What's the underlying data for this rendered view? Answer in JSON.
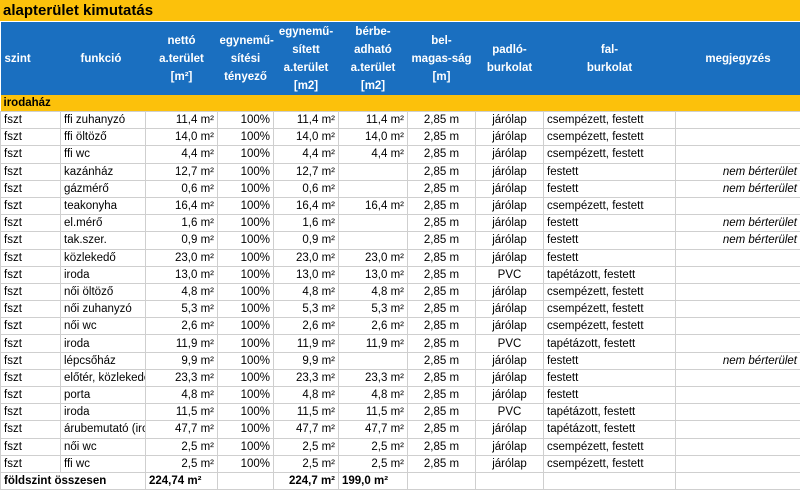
{
  "title": "alapterület kimutatás",
  "headers": [
    "szint",
    "funkció",
    "nettó a.terület [m²]",
    "egyneműsítési tényező",
    "egyneműsített a.terület [m2]",
    "bérbeadható a.terület [m2]",
    "belmagas-ság [m]",
    "padlóburkolat",
    "falburkolat",
    "megjegyzés"
  ],
  "header_lines": [
    [
      "szint"
    ],
    [
      "funkció"
    ],
    [
      "nettó",
      "a.terület",
      "[m²]"
    ],
    [
      "egynemű-",
      "sítési",
      "tényező"
    ],
    [
      "egynemű-",
      "sített",
      "a.terület",
      "[m2]"
    ],
    [
      "bérbe-",
      "adható",
      "a.terület",
      "[m2]"
    ],
    [
      "bel-",
      "magas-ság",
      "[m]"
    ],
    [
      "padló-",
      "burkolat"
    ],
    [
      "fal-",
      "burkolat"
    ],
    [
      "megjegyzés"
    ]
  ],
  "section": "irodaház",
  "rows": [
    [
      "fszt",
      "ffi zuhanyzó",
      "11,4 m²",
      "100%",
      "11,4 m²",
      "11,4 m²",
      "2,85 m",
      "járólap",
      "csempézett, festett",
      ""
    ],
    [
      "fszt",
      "ffi öltöző",
      "14,0 m²",
      "100%",
      "14,0 m²",
      "14,0 m²",
      "2,85 m",
      "járólap",
      "csempézett, festett",
      ""
    ],
    [
      "fszt",
      "ffi wc",
      "4,4 m²",
      "100%",
      "4,4 m²",
      "4,4 m²",
      "2,85 m",
      "járólap",
      "csempézett, festett",
      ""
    ],
    [
      "fszt",
      "kazánház",
      "12,7 m²",
      "100%",
      "12,7 m²",
      "",
      "2,85 m",
      "járólap",
      "festett",
      "nem bérterület"
    ],
    [
      "fszt",
      "gázmérő",
      "0,6 m²",
      "100%",
      "0,6 m²",
      "",
      "2,85 m",
      "járólap",
      "festett",
      "nem bérterület"
    ],
    [
      "fszt",
      "teakonyha",
      "16,4 m²",
      "100%",
      "16,4 m²",
      "16,4 m²",
      "2,85 m",
      "járólap",
      "csempézett, festett",
      ""
    ],
    [
      "fszt",
      "el.mérő",
      "1,6 m²",
      "100%",
      "1,6 m²",
      "",
      "2,85 m",
      "járólap",
      "festett",
      "nem bérterület"
    ],
    [
      "fszt",
      "tak.szer.",
      "0,9 m²",
      "100%",
      "0,9 m²",
      "",
      "2,85 m",
      "járólap",
      "festett",
      "nem bérterület"
    ],
    [
      "fszt",
      "közlekedő",
      "23,0 m²",
      "100%",
      "23,0 m²",
      "23,0 m²",
      "2,85 m",
      "járólap",
      "festett",
      ""
    ],
    [
      "fszt",
      "iroda",
      "13,0 m²",
      "100%",
      "13,0 m²",
      "13,0 m²",
      "2,85 m",
      "PVC",
      "tapétázott, festett",
      ""
    ],
    [
      "fszt",
      "női öltöző",
      "4,8 m²",
      "100%",
      "4,8 m²",
      "4,8 m²",
      "2,85 m",
      "járólap",
      "csempézett, festett",
      ""
    ],
    [
      "fszt",
      "női zuhanyzó",
      "5,3 m²",
      "100%",
      "5,3 m²",
      "5,3 m²",
      "2,85 m",
      "járólap",
      "csempézett, festett",
      ""
    ],
    [
      "fszt",
      "női wc",
      "2,6 m²",
      "100%",
      "2,6 m²",
      "2,6 m²",
      "2,85 m",
      "járólap",
      "csempézett, festett",
      ""
    ],
    [
      "fszt",
      "iroda",
      "11,9 m²",
      "100%",
      "11,9 m²",
      "11,9 m²",
      "2,85 m",
      "PVC",
      "tapétázott, festett",
      ""
    ],
    [
      "fszt",
      "lépcsőház",
      "9,9 m²",
      "100%",
      "9,9 m²",
      "",
      "2,85 m",
      "járólap",
      "festett",
      "nem bérterület"
    ],
    [
      "fszt",
      "előtér, közlekedők",
      "23,3 m²",
      "100%",
      "23,3 m²",
      "23,3 m²",
      "2,85 m",
      "járólap",
      "festett",
      ""
    ],
    [
      "fszt",
      "porta",
      "4,8 m²",
      "100%",
      "4,8 m²",
      "4,8 m²",
      "2,85 m",
      "járólap",
      "festett",
      ""
    ],
    [
      "fszt",
      "iroda",
      "11,5 m²",
      "100%",
      "11,5 m²",
      "11,5 m²",
      "2,85 m",
      "PVC",
      "tapétázott, festett",
      ""
    ],
    [
      "fszt",
      "árubemutató (iroda)",
      "47,7 m²",
      "100%",
      "47,7 m²",
      "47,7 m²",
      "2,85 m",
      "járólap",
      "tapétázott, festett",
      ""
    ],
    [
      "fszt",
      "női wc",
      "2,5 m²",
      "100%",
      "2,5 m²",
      "2,5 m²",
      "2,85 m",
      "járólap",
      "csempézett, festett",
      ""
    ],
    [
      "fszt",
      "ffi wc",
      "2,5 m²",
      "100%",
      "2,5 m²",
      "2,5 m²",
      "2,85 m",
      "járólap",
      "csempézett, festett",
      ""
    ]
  ],
  "total": {
    "label": "földszint összesen",
    "netto": "224,74 m²",
    "egynem": "224,7 m²",
    "berbe": "199,0 m²"
  },
  "colors": {
    "title": "#fcc10b",
    "header": "#1a6fc0"
  }
}
